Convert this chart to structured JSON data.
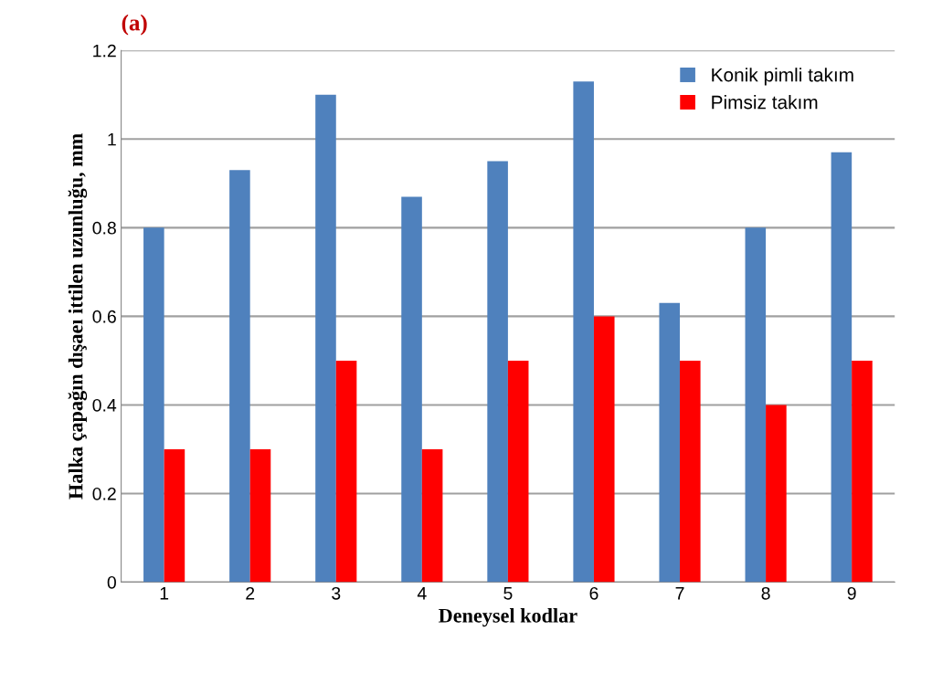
{
  "chart_data": {
    "type": "bar",
    "title": "(a)",
    "xlabel": "Deneysel kodlar",
    "ylabel": "Halka çapağın dışaeı ittilen uzunluğu, mm",
    "categories": [
      "1",
      "2",
      "3",
      "4",
      "5",
      "6",
      "7",
      "8",
      "9"
    ],
    "series": [
      {
        "name": "Konik pimli takım",
        "color": "#4f81bd",
        "values": [
          0.8,
          0.93,
          1.1,
          0.87,
          0.95,
          1.13,
          0.63,
          0.8,
          0.97
        ]
      },
      {
        "name": "Pimsiz takım",
        "color": "#ff0000",
        "values": [
          0.3,
          0.3,
          0.5,
          0.3,
          0.5,
          0.6,
          0.5,
          0.4,
          0.5
        ]
      }
    ],
    "ylim": [
      0,
      1.2
    ],
    "yticks": [
      0,
      0.2,
      0.4,
      0.6,
      0.8,
      1,
      1.2
    ],
    "grid": "y",
    "legend": "top right"
  }
}
